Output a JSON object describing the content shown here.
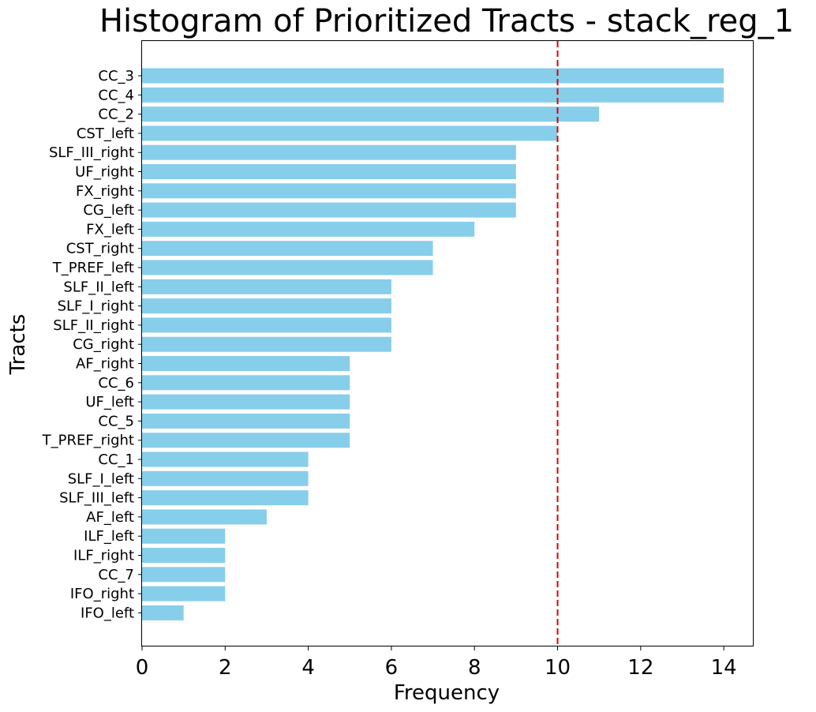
{
  "chart_data": {
    "type": "bar",
    "orientation": "horizontal",
    "title": "Histogram of Prioritized Tracts - stack_reg_1",
    "xlabel": "Frequency",
    "ylabel": "Tracts",
    "xlim": [
      0,
      14.7
    ],
    "xticks": [
      0,
      2,
      4,
      6,
      8,
      10,
      12,
      14
    ],
    "grid": false,
    "bar_color": "#87CEEB",
    "threshold_line": {
      "value": 10,
      "color": "#DD0000",
      "style": "dashed"
    },
    "categories": [
      "CC_3",
      "CC_4",
      "CC_2",
      "CST_left",
      "SLF_III_right",
      "UF_right",
      "FX_right",
      "CG_left",
      "FX_left",
      "CST_right",
      "T_PREF_left",
      "SLF_II_left",
      "SLF_I_right",
      "SLF_II_right",
      "CG_right",
      "AF_right",
      "CC_6",
      "UF_left",
      "CC_5",
      "T_PREF_right",
      "CC_1",
      "SLF_I_left",
      "SLF_III_left",
      "AF_left",
      "ILF_left",
      "ILF_right",
      "CC_7",
      "IFO_right",
      "IFO_left"
    ],
    "values": [
      14,
      14,
      11,
      10,
      9,
      9,
      9,
      9,
      8,
      7,
      7,
      6,
      6,
      6,
      6,
      5,
      5,
      5,
      5,
      5,
      4,
      4,
      4,
      3,
      2,
      2,
      2,
      2,
      1
    ]
  }
}
